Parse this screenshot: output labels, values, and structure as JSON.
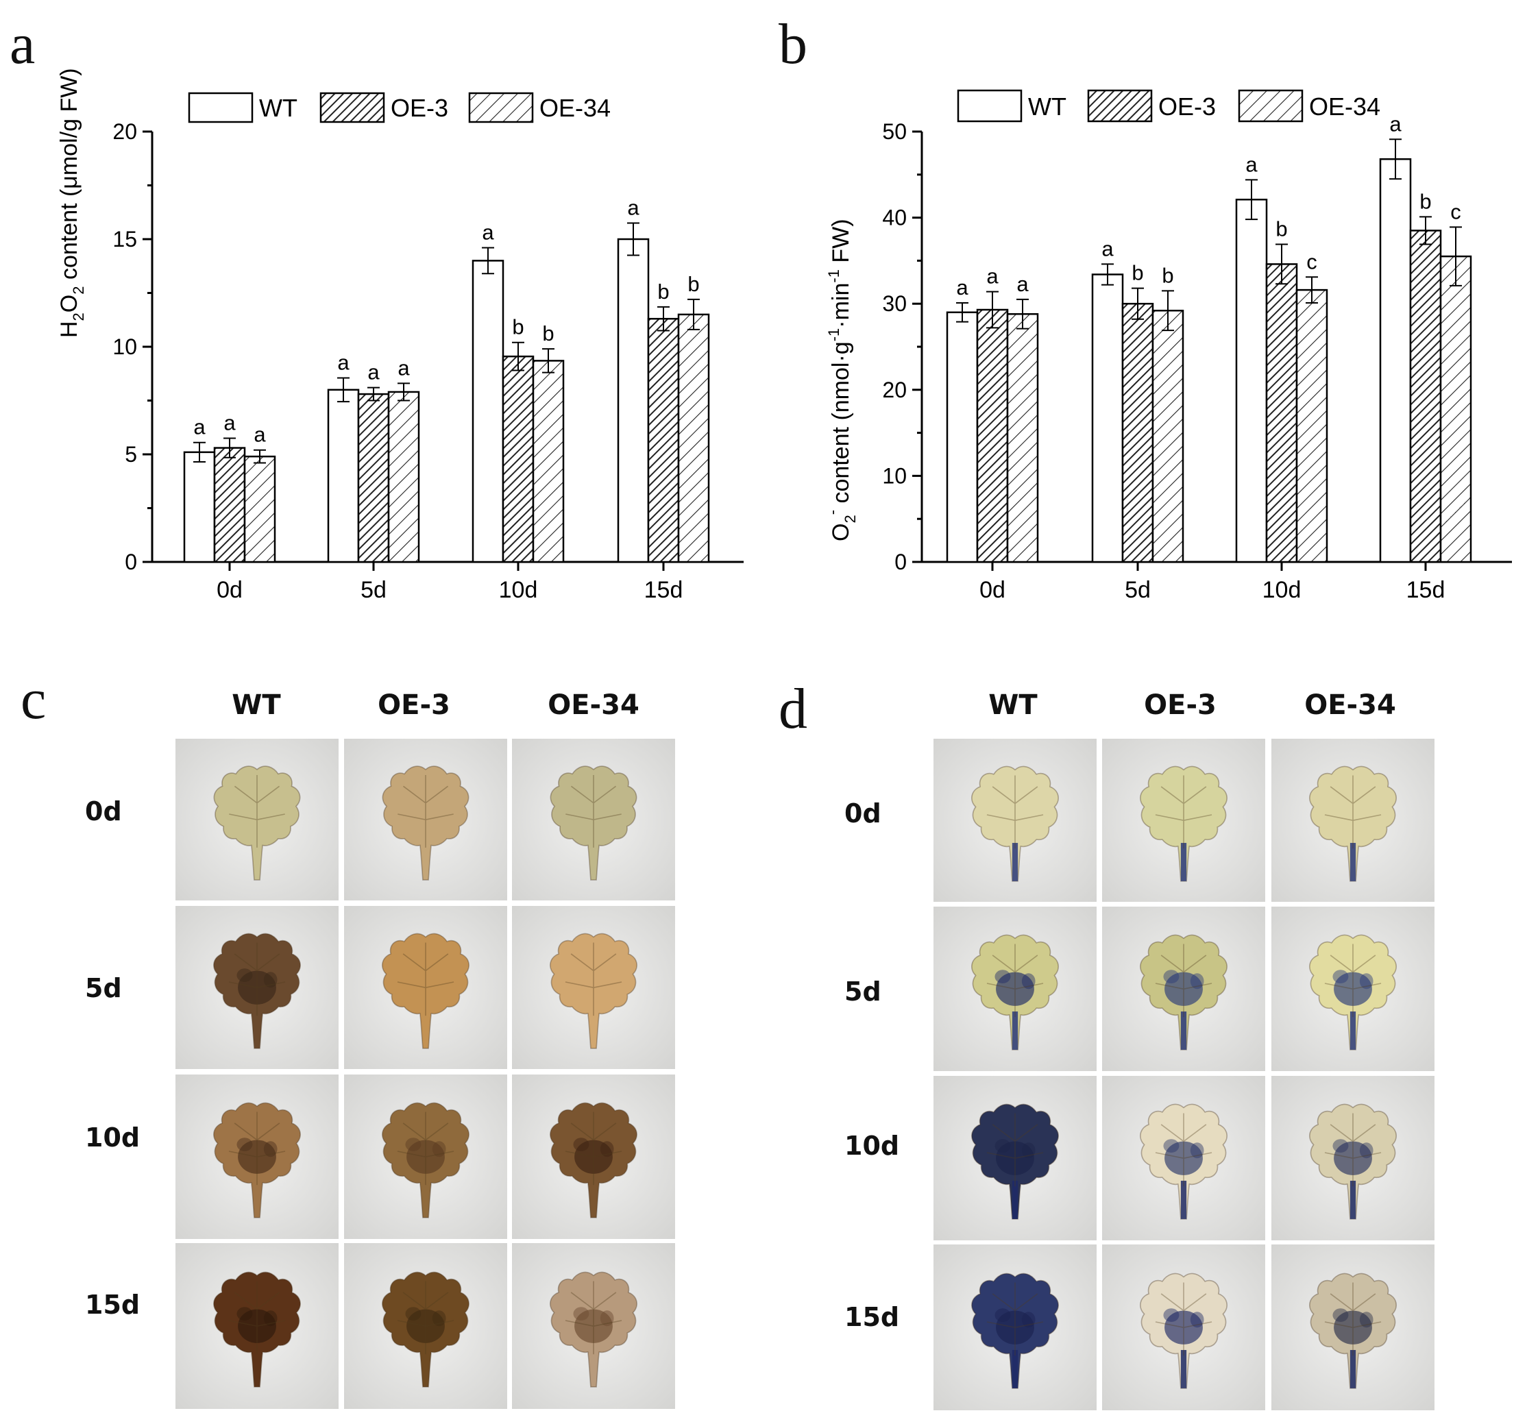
{
  "panels": {
    "a": "a",
    "b": "b",
    "c": "c",
    "d": "d"
  },
  "legend": [
    "WT",
    "OE-3",
    "OE-34"
  ],
  "chart_data": [
    {
      "type": "bar",
      "panel": "a",
      "categories": [
        "0d",
        "5d",
        "10d",
        "15d"
      ],
      "series": [
        {
          "name": "WT",
          "values": [
            5.1,
            8.0,
            14.0,
            15.0
          ],
          "errors": [
            0.45,
            0.55,
            0.6,
            0.75
          ],
          "sig": [
            "a",
            "a",
            "a",
            "a"
          ]
        },
        {
          "name": "OE-3",
          "values": [
            5.3,
            7.8,
            9.55,
            11.3
          ],
          "errors": [
            0.45,
            0.3,
            0.65,
            0.55
          ],
          "sig": [
            "a",
            "a",
            "b",
            "b"
          ]
        },
        {
          "name": "OE-34",
          "values": [
            4.9,
            7.9,
            9.35,
            11.5
          ],
          "errors": [
            0.3,
            0.4,
            0.55,
            0.7
          ],
          "sig": [
            "a",
            "a",
            "b",
            "b"
          ]
        }
      ],
      "ylabel": "content (μmol/g FW)",
      "ylabel_species": {
        "main": "H",
        "sub1": "2",
        "mid": "O",
        "sub2": "2"
      },
      "ylim": [
        0,
        20
      ],
      "yticks": [
        0,
        5,
        10,
        15,
        20
      ]
    },
    {
      "type": "bar",
      "panel": "b",
      "categories": [
        "0d",
        "5d",
        "10d",
        "15d"
      ],
      "series": [
        {
          "name": "WT",
          "values": [
            29.0,
            33.4,
            42.1,
            46.8
          ],
          "errors": [
            1.1,
            1.2,
            2.3,
            2.3
          ],
          "sig": [
            "a",
            "a",
            "a",
            "a"
          ]
        },
        {
          "name": "OE-3",
          "values": [
            29.3,
            30.0,
            34.6,
            38.5
          ],
          "errors": [
            2.1,
            1.8,
            2.3,
            1.6
          ],
          "sig": [
            "a",
            "b",
            "b",
            "b"
          ]
        },
        {
          "name": "OE-34",
          "values": [
            28.8,
            29.2,
            31.6,
            35.5
          ],
          "errors": [
            1.7,
            2.3,
            1.5,
            3.4
          ],
          "sig": [
            "a",
            "b",
            "c",
            "c"
          ]
        }
      ],
      "ylabel_parts": {
        "main": "O",
        "sub": "2",
        "sup": "-",
        "rest1": " content (nmol·g",
        "sup1": "-1",
        "rest2": "·min",
        "sup2": "-1",
        "rest3": " FW)"
      },
      "ylim": [
        0,
        50
      ],
      "yticks": [
        0,
        10,
        20,
        30,
        40,
        50
      ]
    }
  ],
  "photo_panels": [
    {
      "panel": "c",
      "columns": [
        "WT",
        "OE-3",
        "OE-34"
      ],
      "rows": [
        "0d",
        "5d",
        "10d",
        "15d"
      ]
    },
    {
      "panel": "d",
      "columns": [
        "WT",
        "OE-3",
        "OE-34"
      ],
      "rows": [
        "0d",
        "5d",
        "10d",
        "15d"
      ]
    }
  ]
}
